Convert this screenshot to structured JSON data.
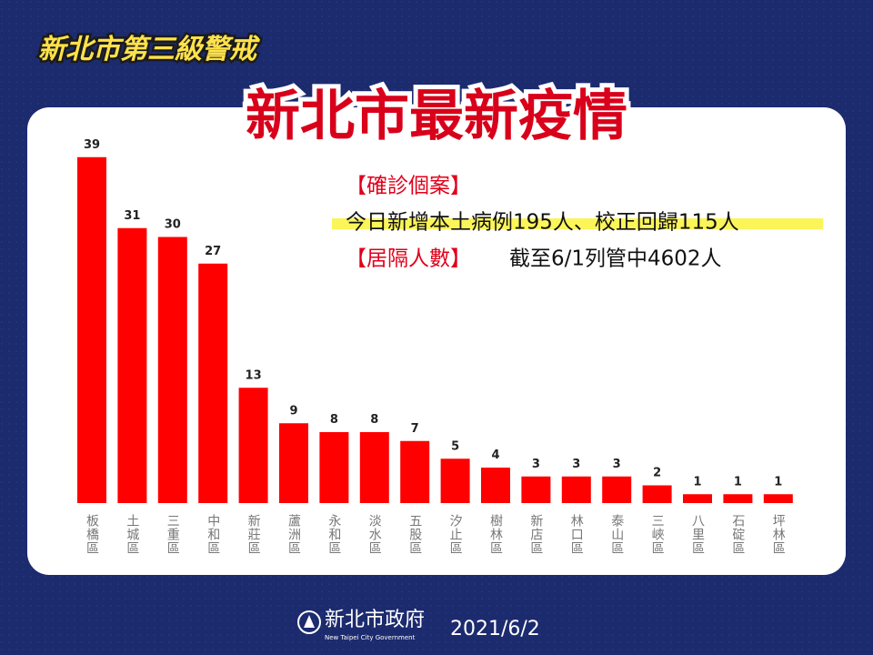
{
  "header": {
    "badge": "新北市第三級警戒",
    "title": "新北市最新疫情"
  },
  "info": {
    "case_label": "【確診個案】",
    "case_text": "今日新增本土病例195人、校正回歸115人",
    "quarantine_label": "【居隔人數】",
    "quarantine_text": "截至6/1列管中4602人"
  },
  "footer": {
    "org": "新北市政府",
    "org_en": "New Taipei City Government",
    "date": "2021/6/2"
  },
  "chart_data": {
    "type": "bar",
    "color": "#ff0000",
    "categories": [
      "板橋區",
      "土城區",
      "三重區",
      "中和區",
      "新莊區",
      "蘆洲區",
      "永和區",
      "淡水區",
      "五股區",
      "汐止區",
      "樹林區",
      "新店區",
      "林口區",
      "泰山區",
      "三峽區",
      "八里區",
      "石碇區",
      "坪林區"
    ],
    "values": [
      39,
      31,
      30,
      27,
      13,
      9,
      8,
      8,
      7,
      5,
      4,
      3,
      3,
      3,
      2,
      1,
      1,
      1
    ]
  }
}
